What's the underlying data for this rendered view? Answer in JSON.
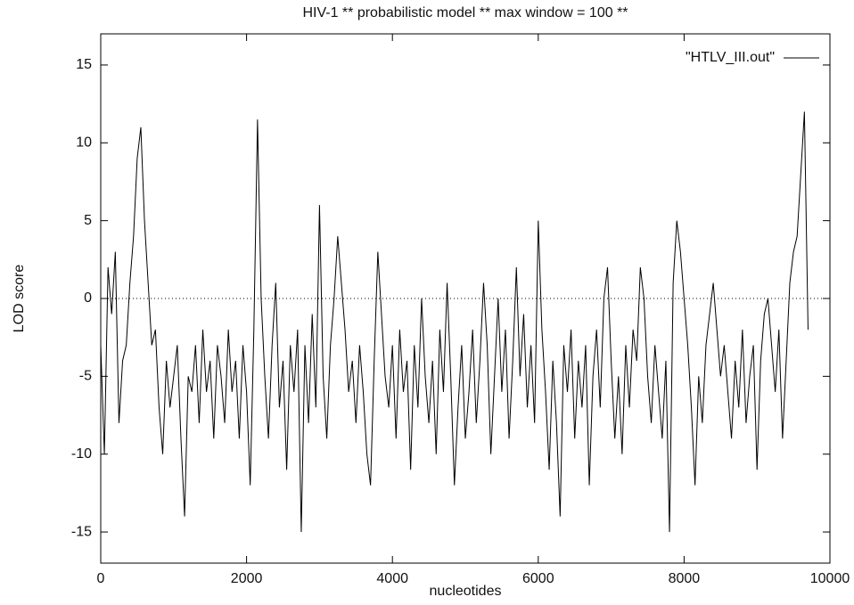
{
  "chart_data": {
    "type": "line",
    "title": "HIV-1 ** probabilistic model ** max window = 100 **",
    "xlabel": "nucleotides",
    "ylabel": "LOD score",
    "x": [
      0,
      50,
      100,
      150,
      200,
      250,
      300,
      350,
      400,
      450,
      500,
      550,
      600,
      650,
      700,
      750,
      800,
      850,
      900,
      950,
      1000,
      1050,
      1100,
      1150,
      1200,
      1250,
      1300,
      1350,
      1400,
      1450,
      1500,
      1550,
      1600,
      1650,
      1700,
      1750,
      1800,
      1850,
      1900,
      1950,
      2000,
      2050,
      2100,
      2150,
      2200,
      2250,
      2300,
      2350,
      2400,
      2450,
      2500,
      2550,
      2600,
      2650,
      2700,
      2750,
      2800,
      2850,
      2900,
      2950,
      3000,
      3050,
      3100,
      3150,
      3200,
      3250,
      3300,
      3350,
      3400,
      3450,
      3500,
      3550,
      3600,
      3650,
      3700,
      3750,
      3800,
      3850,
      3900,
      3950,
      4000,
      4050,
      4100,
      4150,
      4200,
      4250,
      4300,
      4350,
      4400,
      4450,
      4500,
      4550,
      4600,
      4650,
      4700,
      4750,
      4800,
      4850,
      4900,
      4950,
      5000,
      5050,
      5100,
      5150,
      5200,
      5250,
      5300,
      5350,
      5400,
      5450,
      5500,
      5550,
      5600,
      5650,
      5700,
      5750,
      5800,
      5850,
      5900,
      5950,
      6000,
      6050,
      6100,
      6150,
      6200,
      6250,
      6300,
      6350,
      6400,
      6450,
      6500,
      6550,
      6600,
      6650,
      6700,
      6750,
      6800,
      6850,
      6900,
      6950,
      7000,
      7050,
      7100,
      7150,
      7200,
      7250,
      7300,
      7350,
      7400,
      7450,
      7500,
      7550,
      7600,
      7650,
      7700,
      7750,
      7800,
      7850,
      7900,
      7950,
      8000,
      8050,
      8100,
      8150,
      8200,
      8250,
      8300,
      8350,
      8400,
      8450,
      8500,
      8550,
      8600,
      8650,
      8700,
      8750,
      8800,
      8850,
      8900,
      8950,
      9000,
      9050,
      9100,
      9150,
      9200,
      9250,
      9300,
      9350,
      9400,
      9450,
      9500,
      9550,
      9600,
      9650,
      9700
    ],
    "series": [
      {
        "name": "\"HTLV_III.out\"",
        "color": "#000000",
        "values": [
          -3,
          -10,
          2,
          -1,
          3,
          -8,
          -4,
          -3,
          1,
          4,
          9,
          11,
          5,
          1,
          -3,
          -2,
          -7,
          -10,
          -4,
          -7,
          -5,
          -3,
          -9,
          -14,
          -5,
          -6,
          -3,
          -8,
          -2,
          -6,
          -4,
          -9,
          -3,
          -5,
          -8,
          -2,
          -6,
          -4,
          -9,
          -3,
          -6,
          -12,
          -2,
          11.5,
          0,
          -5,
          -9,
          -3,
          1,
          -7,
          -4,
          -11,
          -3,
          -6,
          -2,
          -15,
          -3,
          -8,
          -1,
          -7,
          6,
          -5,
          -9,
          -3,
          0,
          4,
          1,
          -2,
          -6,
          -4,
          -8,
          -3,
          -6,
          -10,
          -12,
          -4,
          3,
          -1,
          -5,
          -7,
          -3,
          -9,
          -2,
          -6,
          -4,
          -11,
          -3,
          -7,
          0,
          -5,
          -8,
          -4,
          -10,
          -2,
          -6,
          1,
          -5,
          -12,
          -7,
          -3,
          -9,
          -6,
          -2,
          -8,
          -4,
          1,
          -3,
          -10,
          -5,
          0,
          -6,
          -2,
          -9,
          -4,
          2,
          -5,
          -1,
          -7,
          -3,
          -8,
          5,
          -2,
          -6,
          -11,
          -4,
          -8,
          -14,
          -3,
          -6,
          -2,
          -9,
          -4,
          -7,
          -3,
          -12,
          -5,
          -2,
          -7,
          0,
          2,
          -4,
          -9,
          -5,
          -10,
          -3,
          -7,
          -2,
          -4,
          2,
          0,
          -5,
          -8,
          -3,
          -6,
          -9,
          -4,
          -15,
          1,
          5,
          3,
          0,
          -3,
          -7,
          -12,
          -5,
          -8,
          -3,
          -1,
          1,
          -2,
          -5,
          -3,
          -6,
          -9,
          -4,
          -7,
          -2,
          -8,
          -5,
          -3,
          -11,
          -4,
          -1,
          0,
          -3,
          -6,
          -2,
          -9,
          -4,
          1,
          3,
          4,
          8,
          12,
          -2
        ]
      }
    ],
    "xlim": [
      0,
      10000
    ],
    "xticks": [
      0,
      2000,
      4000,
      6000,
      8000,
      10000
    ],
    "ylim": [
      -17,
      17
    ],
    "yticks": [
      -15,
      -10,
      -5,
      0,
      5,
      10,
      15
    ],
    "zeroaxis": true,
    "legend": "top-right"
  }
}
